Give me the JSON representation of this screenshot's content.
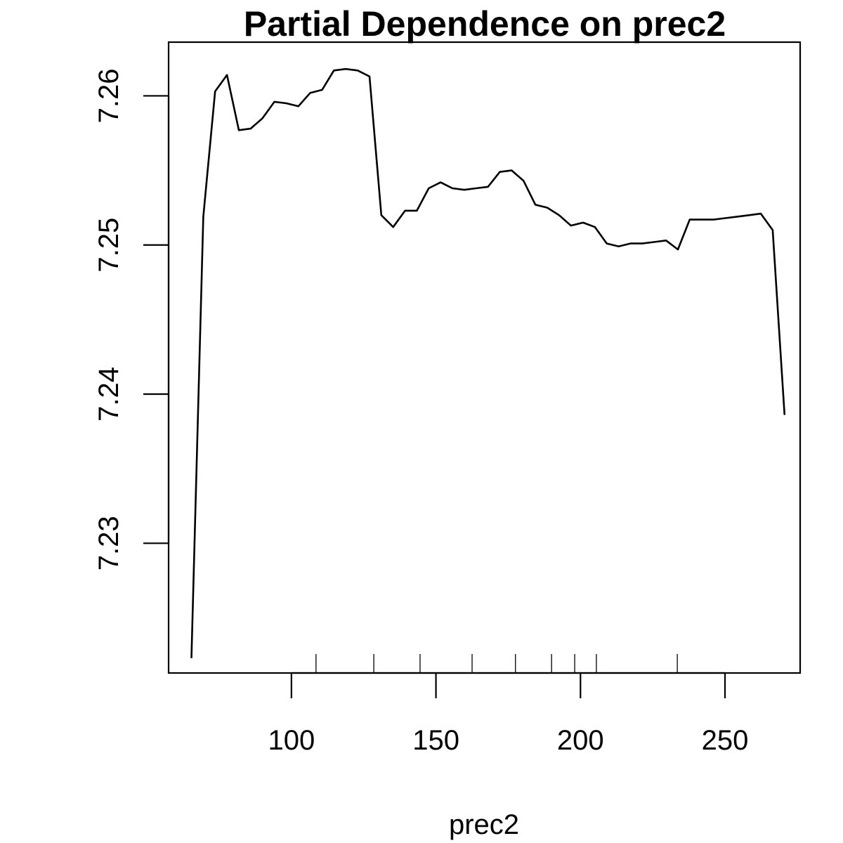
{
  "chart_data": {
    "type": "line",
    "title": "Partial Dependence on prec2",
    "xlabel": "prec2",
    "ylabel": "",
    "xlim": [
      57.5,
      276
    ],
    "ylim": [
      7.2213,
      7.2636
    ],
    "x_ticks": [
      100,
      150,
      200,
      250
    ],
    "y_ticks": [
      7.23,
      7.24,
      7.25,
      7.26
    ],
    "x_tick_labels": [
      "100",
      "150",
      "200",
      "250"
    ],
    "y_tick_labels": [
      "7.23",
      "7.24",
      "7.25",
      "7.26"
    ],
    "grid": false,
    "series": [
      {
        "x": [
          65.4,
          69.5,
          73.6,
          77.7,
          81.8,
          85.9,
          90.0,
          94.1,
          98.2,
          102.4,
          106.5,
          110.6,
          114.7,
          118.8,
          122.9,
          127.0,
          131.1,
          135.2,
          139.3,
          143.4,
          147.5,
          151.6,
          155.7,
          159.8,
          163.9,
          168.0,
          172.1,
          176.2,
          180.3,
          184.4,
          188.5,
          192.6,
          196.7,
          200.9,
          205.0,
          209.1,
          213.2,
          217.3,
          221.4,
          225.5,
          229.6,
          233.7,
          237.8,
          241.9,
          246.0,
          250.1,
          254.2,
          258.3,
          262.4,
          266.5,
          270.6
        ],
        "y": [
          7.2223,
          7.2519,
          7.2603,
          7.2614,
          7.2577,
          7.2578,
          7.2585,
          7.2596,
          7.2595,
          7.2593,
          7.2602,
          7.2604,
          7.2617,
          7.2618,
          7.2617,
          7.2613,
          7.252,
          7.2512,
          7.2523,
          7.2523,
          7.2538,
          7.2542,
          7.2538,
          7.2537,
          7.2538,
          7.2539,
          7.2549,
          7.255,
          7.2543,
          7.2527,
          7.2525,
          7.252,
          7.2513,
          7.2515,
          7.2512,
          7.2501,
          7.2499,
          7.2501,
          7.2501,
          7.2502,
          7.2503,
          7.2497,
          7.2517,
          7.2517,
          7.2517,
          7.2518,
          7.2519,
          7.252,
          7.2521,
          7.251,
          7.2386
        ]
      }
    ],
    "rug": [
      108.5,
      128.5,
      144.5,
      162.5,
      177.5,
      190.0,
      198.0,
      205.5,
      233.5
    ]
  }
}
